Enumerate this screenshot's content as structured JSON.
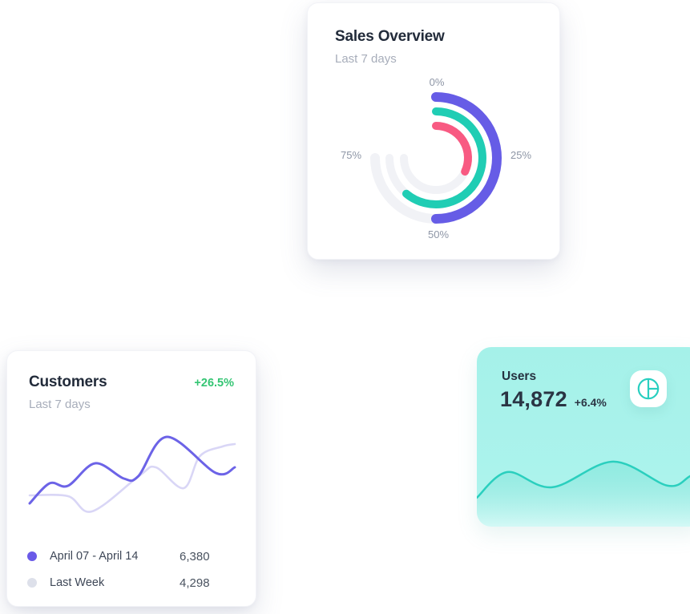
{
  "page": {
    "background": "#FFFFFF"
  },
  "sales_card": {
    "title": "Sales Overview",
    "subtitle": "Last 7 days",
    "chart_data": {
      "type": "radial-bar",
      "labels": [
        "0%",
        "25%",
        "50%",
        "75%"
      ],
      "label_color": "#8E96A6",
      "track_color": "#F1F2F6",
      "track_span_deg": 270,
      "start_angle_deg": 0,
      "series": [
        {
          "name": "outer-ring",
          "value_pct": 50,
          "color": "#665CE6",
          "radius": 76,
          "stroke": 12
        },
        {
          "name": "middle-ring",
          "value_pct": 61,
          "color": "#20CDB4",
          "radius": 58,
          "stroke": 10
        },
        {
          "name": "inner-ring",
          "value_pct": 32,
          "color": "#F85A82",
          "radius": 40,
          "stroke": 10
        }
      ]
    }
  },
  "customers_card": {
    "title": "Customers",
    "change": "+26.5%",
    "change_color": "#34C573",
    "subtitle": "Last 7 days",
    "chart_data": {
      "type": "line",
      "y_unit": "relative 0-1 (smoothed spline, no axes shown)",
      "series": [
        {
          "name": "April 07 - April 14",
          "color": "#6C63E7",
          "width": 3,
          "points": [
            [
              0,
              0.13
            ],
            [
              0.097,
              0.38
            ],
            [
              0.187,
              0.35
            ],
            [
              0.319,
              0.63
            ],
            [
              0.459,
              0.44
            ],
            [
              0.53,
              0.47
            ],
            [
              0.669,
              0.96
            ],
            [
              0.907,
              0.51
            ],
            [
              1,
              0.58
            ]
          ]
        },
        {
          "name": "Last Week",
          "color": "#D9D6F6",
          "width": 2.6,
          "points": [
            [
              0,
              0.23
            ],
            [
              0.187,
              0.22
            ],
            [
              0.304,
              0.03
            ],
            [
              0.537,
              0.48
            ],
            [
              0.615,
              0.58
            ],
            [
              0.751,
              0.32
            ],
            [
              0.83,
              0.72
            ],
            [
              0.94,
              0.84
            ],
            [
              1,
              0.87
            ]
          ]
        }
      ]
    },
    "legend": [
      {
        "label": "April 07 - April 14",
        "value": "6,380",
        "dot_color": "#6A5AE8"
      },
      {
        "label": "Last Week",
        "value": "4,298",
        "dot_color": "#DDE0EA"
      }
    ]
  },
  "users_card": {
    "title": "Users",
    "value": "14,872",
    "change": "+6.4%",
    "bg_color": "#A6F1E9",
    "icon": "pie-chart-icon",
    "icon_color": "#29CFC0",
    "chart_data": {
      "type": "area",
      "color": "#2ACFBE",
      "y_unit": "relative 0-1 (decorative wave, no axes shown)",
      "points": [
        [
          0,
          0.161
        ],
        [
          0.135,
          0.304
        ],
        [
          0.333,
          0.219
        ],
        [
          0.603,
          0.362
        ],
        [
          0.844,
          0.228
        ],
        [
          0.943,
          0.281
        ],
        [
          1,
          0.32
        ]
      ]
    }
  }
}
